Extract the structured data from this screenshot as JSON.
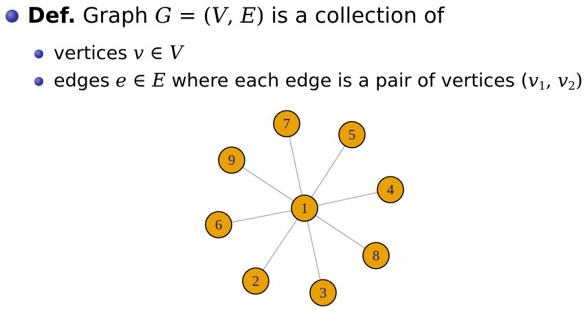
{
  "definition": {
    "keyword": "Def.",
    "text_before": "Graph ",
    "graph_symbol": "G",
    "equals": " = (",
    "vertex_set": "V",
    "comma": ", ",
    "edge_set": "E",
    "close": ")",
    "text_after": " is a collection of"
  },
  "items": [
    {
      "prefix": "vertices ",
      "var": "v",
      "rel": " ∈ ",
      "set": "V"
    },
    {
      "prefix": "edges ",
      "var": "e",
      "rel": " ∈ ",
      "set": "E",
      "rest": " where each edge is a pair of vertices (",
      "v1": "v",
      "v1_sub": "1",
      "sep": ", ",
      "v2": "v",
      "v2_sub": "2",
      "close": ")"
    }
  ],
  "graph": {
    "node_fill": "#e8a100",
    "node_stroke": "#000000",
    "label_color": "#1a1a8c",
    "edge_color": "#b0b0b0",
    "center": "1",
    "nodes": [
      "1",
      "2",
      "3",
      "4",
      "5",
      "6",
      "7",
      "8",
      "9"
    ],
    "edges": [
      [
        "1",
        "7"
      ],
      [
        "1",
        "5"
      ],
      [
        "1",
        "9"
      ],
      [
        "1",
        "4"
      ],
      [
        "1",
        "6"
      ],
      [
        "1",
        "8"
      ],
      [
        "1",
        "2"
      ],
      [
        "1",
        "3"
      ]
    ]
  }
}
